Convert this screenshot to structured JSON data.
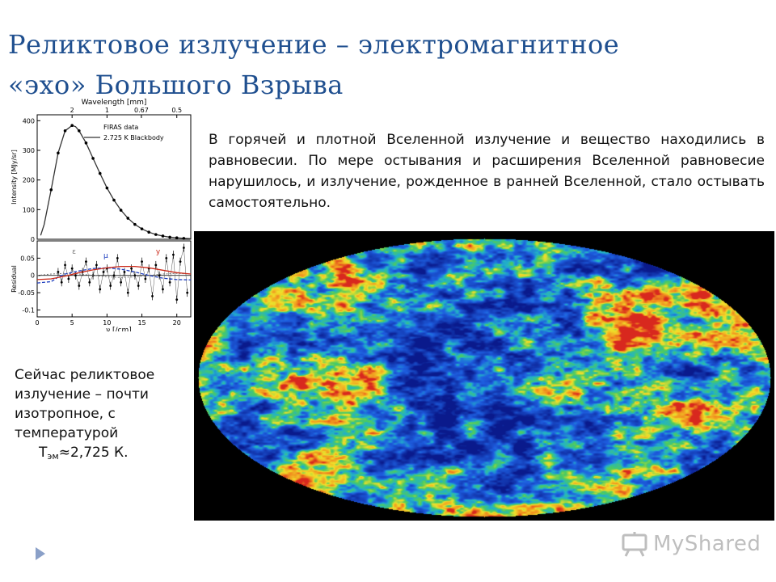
{
  "slide": {
    "title_line1": "Реликтовое излучение – электромагнитное",
    "title_line2": "«эхо» Большого Взрыва",
    "description": "В горячей и плотной Вселенной излучение и вещество находились в равновесии. По мере остывания и расширения Вселенной равновесие нарушилось, и излучение, рожденное в ранней Вселенной, стало остывать самостоятельно.",
    "note_text": "Сейчас реликтовое излучение – почти изотропное, с температурой",
    "note_temp_symbol": "T",
    "note_temp_subscript": "эм",
    "note_temp_value": "≈2,725 К.",
    "watermark": "MyShared"
  },
  "colors": {
    "title": "#1f4f8f",
    "model_curve": "#333333",
    "residual_mu": "#1f3fbf",
    "residual_y": "#cc2a1a",
    "residual_eps": "#777777",
    "map_cold": "#0a1a8c",
    "map_mid": "#22b2c8",
    "map_warm": "#f0e02a",
    "map_hot": "#d8281e"
  },
  "chart_data": {
    "type": "line",
    "top_xlabel": "Wavelength [mm]",
    "top_ticks": [
      "2",
      "1",
      "0.67",
      "0.5"
    ],
    "xlabel": "ν [/cm]",
    "x_ticks": [
      0,
      5,
      10,
      15,
      20
    ],
    "xlim": [
      0,
      22
    ],
    "upper": {
      "ylabel": "Intensity [MJy/sr]",
      "ylim": [
        0,
        420
      ],
      "y_ticks": [
        0,
        100,
        200,
        300,
        400
      ],
      "legend": [
        "FIRAS data",
        "2.725 K Blackbody"
      ],
      "legend_position": "top-right",
      "series": [
        {
          "name": "FIRAS data",
          "x": [
            2,
            3,
            4,
            5,
            6,
            7,
            8,
            9,
            10,
            11,
            12,
            13,
            14,
            15,
            16,
            17,
            18,
            19,
            20,
            21
          ],
          "y": [
            167,
            291,
            366,
            384,
            366,
            325,
            273,
            222,
            173,
            132,
            98,
            71,
            50,
            35,
            24,
            16,
            11,
            7,
            5,
            3
          ]
        },
        {
          "name": "2.725 K Blackbody",
          "x": [
            0.5,
            1,
            2,
            3,
            4,
            5,
            5.5,
            6,
            7,
            8,
            9,
            10,
            11,
            12,
            13,
            14,
            15,
            16,
            17,
            18,
            19,
            20,
            21,
            22
          ],
          "y": [
            13,
            50,
            167,
            291,
            366,
            384,
            380,
            366,
            325,
            273,
            222,
            173,
            132,
            98,
            71,
            50,
            35,
            24,
            16,
            11,
            7,
            5,
            3,
            2
          ]
        }
      ]
    },
    "lower": {
      "ylabel": "Residual",
      "ylim": [
        -0.12,
        0.1
      ],
      "y_ticks": [
        -0.1,
        -0.05,
        0,
        0.05
      ],
      "series": [
        {
          "name": "data residual",
          "x": [
            3,
            3.5,
            4,
            4.5,
            5,
            5.5,
            6,
            6.5,
            7,
            7.5,
            8,
            8.5,
            9,
            9.5,
            10,
            10.5,
            11,
            11.5,
            12,
            12.5,
            13,
            13.5,
            14,
            14.5,
            15,
            15.5,
            16,
            16.5,
            17,
            17.5,
            18,
            18.5,
            19,
            19.5,
            20,
            20.5,
            21,
            21.5
          ],
          "y": [
            0.01,
            -0.02,
            0.03,
            -0.01,
            0.02,
            0.0,
            -0.03,
            0.01,
            0.04,
            -0.02,
            0.0,
            0.03,
            -0.04,
            0.01,
            0.02,
            -0.03,
            0.0,
            0.05,
            -0.02,
            0.01,
            -0.05,
            0.02,
            0.0,
            -0.03,
            0.04,
            -0.01,
            0.02,
            -0.06,
            0.03,
            0.0,
            -0.04,
            0.05,
            -0.02,
            0.06,
            -0.07,
            0.04,
            0.08,
            -0.05
          ]
        },
        {
          "name": "ε",
          "x": [
            0,
            2,
            4,
            6,
            8,
            10,
            12,
            14,
            16,
            18,
            20,
            22
          ],
          "y": [
            0.0,
            0.004,
            0.006,
            0.004,
            0.0,
            -0.004,
            -0.006,
            -0.004,
            0.0,
            0.004,
            0.006,
            0.004
          ]
        },
        {
          "name": "μ",
          "x": [
            0,
            2,
            3,
            4,
            6,
            8,
            10,
            12,
            14,
            16,
            18,
            20,
            22
          ],
          "y": [
            -0.022,
            -0.018,
            -0.005,
            0.004,
            0.013,
            0.02,
            0.022,
            0.018,
            0.01,
            0.0,
            -0.008,
            -0.012,
            -0.013
          ]
        },
        {
          "name": "y",
          "x": [
            0,
            2,
            4,
            6,
            8,
            10,
            12,
            14,
            16,
            18,
            20,
            22
          ],
          "y": [
            -0.012,
            -0.01,
            -0.002,
            0.008,
            0.016,
            0.022,
            0.026,
            0.026,
            0.022,
            0.015,
            0.008,
            0.004
          ]
        }
      ]
    }
  }
}
